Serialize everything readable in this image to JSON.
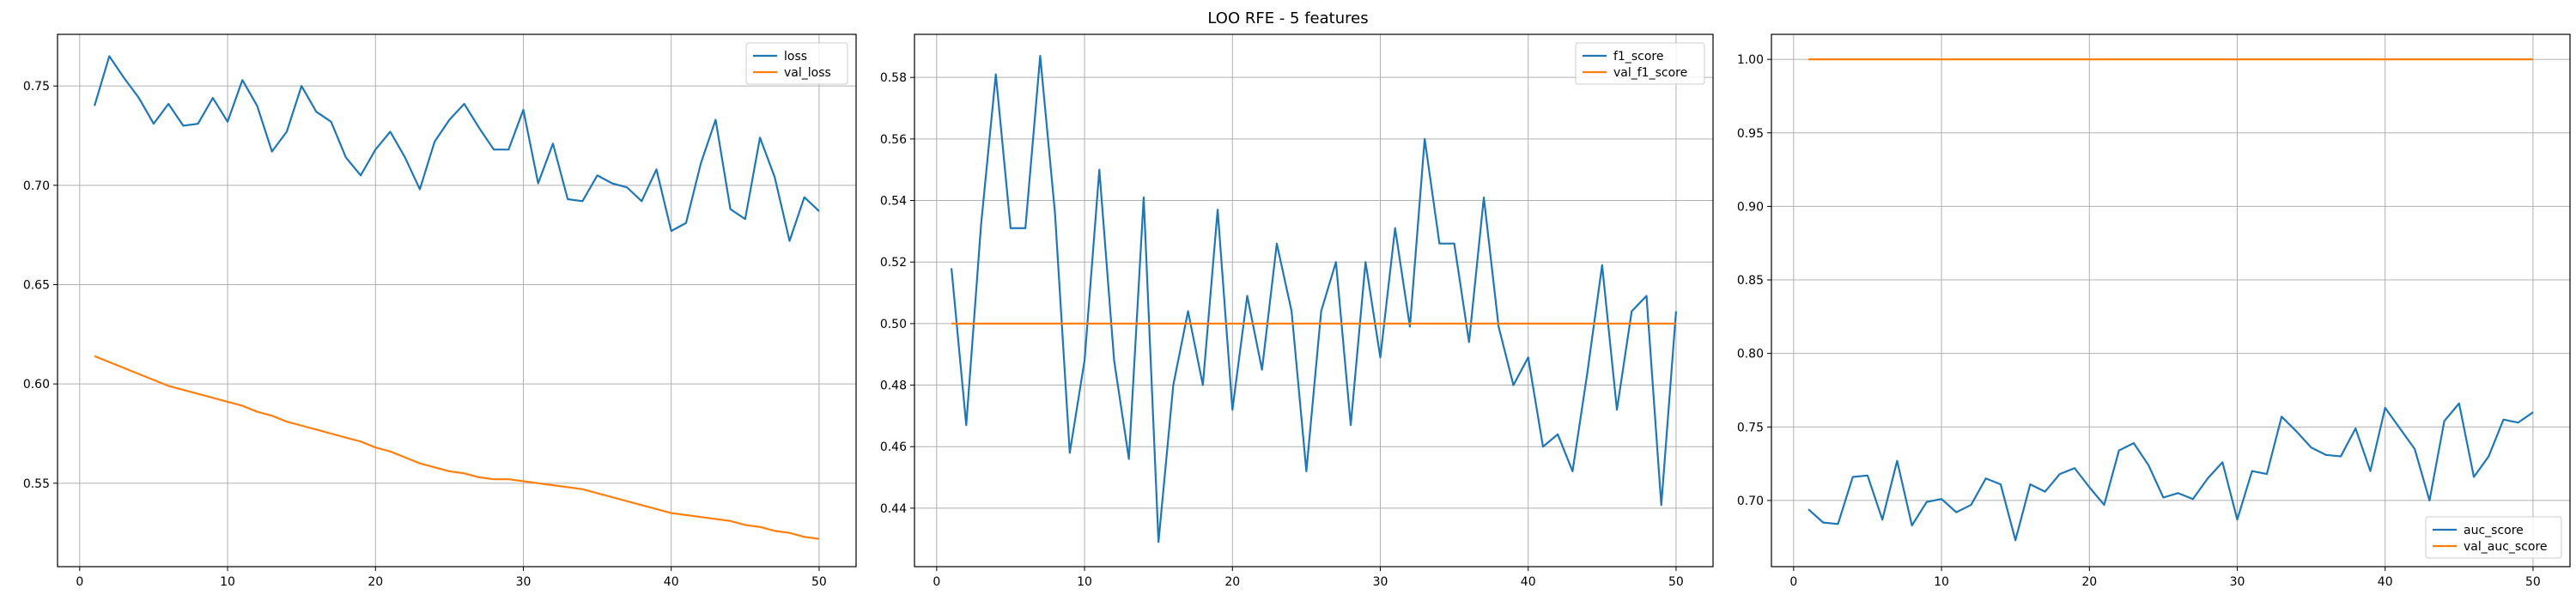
{
  "figure": {
    "title": "LOO RFE - 5 features"
  },
  "colors": {
    "blue": "#1f77b4",
    "orange": "#ff7f0e",
    "grid": "#b0b0b0"
  },
  "chart_data": [
    {
      "type": "line",
      "title": "",
      "xlabel": "",
      "ylabel": "",
      "grid": true,
      "legend": "upper right",
      "xlim": [
        -1.5,
        52.5
      ],
      "ylim": [
        0.508,
        0.776
      ],
      "xticks": [
        0,
        10,
        20,
        30,
        40,
        50
      ],
      "yticks": [
        0.55,
        0.6,
        0.65,
        0.7,
        0.75
      ],
      "ytick_labels": [
        "0.55",
        "0.60",
        "0.65",
        "0.70",
        "0.75"
      ],
      "x": [
        1,
        2,
        3,
        4,
        5,
        6,
        7,
        8,
        9,
        10,
        11,
        12,
        13,
        14,
        15,
        16,
        17,
        18,
        19,
        20,
        21,
        22,
        23,
        24,
        25,
        26,
        27,
        28,
        29,
        30,
        31,
        32,
        33,
        34,
        35,
        36,
        37,
        38,
        39,
        40,
        41,
        42,
        43,
        44,
        45,
        46,
        47,
        48,
        49,
        50
      ],
      "series": [
        {
          "name": "loss",
          "color": "#1f77b4",
          "values": [
            0.74,
            0.765,
            0.754,
            0.744,
            0.731,
            0.741,
            0.73,
            0.731,
            0.744,
            0.732,
            0.753,
            0.74,
            0.717,
            0.727,
            0.75,
            0.737,
            0.732,
            0.714,
            0.705,
            0.718,
            0.727,
            0.714,
            0.698,
            0.722,
            0.733,
            0.741,
            0.729,
            0.718,
            0.718,
            0.738,
            0.701,
            0.721,
            0.693,
            0.692,
            0.705,
            0.701,
            0.699,
            0.692,
            0.708,
            0.677,
            0.681,
            0.711,
            0.733,
            0.688,
            0.683,
            0.724,
            0.704,
            0.672,
            0.694,
            0.687
          ]
        },
        {
          "name": "val_loss",
          "color": "#ff7f0e",
          "values": [
            0.614,
            0.611,
            0.608,
            0.605,
            0.602,
            0.599,
            0.597,
            0.595,
            0.593,
            0.591,
            0.589,
            0.586,
            0.584,
            0.581,
            0.579,
            0.577,
            0.575,
            0.573,
            0.571,
            0.568,
            0.566,
            0.563,
            0.56,
            0.558,
            0.556,
            0.555,
            0.553,
            0.552,
            0.552,
            0.551,
            0.55,
            0.549,
            0.548,
            0.547,
            0.545,
            0.543,
            0.541,
            0.539,
            0.537,
            0.535,
            0.534,
            0.533,
            0.532,
            0.531,
            0.529,
            0.528,
            0.526,
            0.525,
            0.523,
            0.522
          ]
        }
      ]
    },
    {
      "type": "line",
      "title": "",
      "xlabel": "",
      "ylabel": "",
      "grid": true,
      "legend": "upper right",
      "xlim": [
        -1.5,
        52.5
      ],
      "ylim": [
        0.421,
        0.594
      ],
      "xticks": [
        0,
        10,
        20,
        30,
        40,
        50
      ],
      "yticks": [
        0.44,
        0.46,
        0.48,
        0.5,
        0.52,
        0.54,
        0.56,
        0.58
      ],
      "ytick_labels": [
        "0.44",
        "0.46",
        "0.48",
        "0.50",
        "0.52",
        "0.54",
        "0.56",
        "0.58"
      ],
      "x": [
        1,
        2,
        3,
        4,
        5,
        6,
        7,
        8,
        9,
        10,
        11,
        12,
        13,
        14,
        15,
        16,
        17,
        18,
        19,
        20,
        21,
        22,
        23,
        24,
        25,
        26,
        27,
        28,
        29,
        30,
        31,
        32,
        33,
        34,
        35,
        36,
        37,
        38,
        39,
        40,
        41,
        42,
        43,
        44,
        45,
        46,
        47,
        48,
        49,
        50
      ],
      "series": [
        {
          "name": "f1_score",
          "color": "#1f77b4",
          "values": [
            0.518,
            0.467,
            0.532,
            0.581,
            0.531,
            0.531,
            0.587,
            0.536,
            0.458,
            0.488,
            0.55,
            0.488,
            0.456,
            0.541,
            0.429,
            0.48,
            0.504,
            0.48,
            0.537,
            0.472,
            0.509,
            0.485,
            0.526,
            0.504,
            0.452,
            0.504,
            0.52,
            0.467,
            0.52,
            0.489,
            0.531,
            0.499,
            0.56,
            0.526,
            0.526,
            0.494,
            0.541,
            0.499,
            0.48,
            0.489,
            0.46,
            0.464,
            0.452,
            0.484,
            0.519,
            0.472,
            0.504,
            0.509,
            0.441,
            0.504
          ]
        },
        {
          "name": "val_f1_score",
          "color": "#ff7f0e",
          "values": [
            0.5,
            0.5,
            0.5,
            0.5,
            0.5,
            0.5,
            0.5,
            0.5,
            0.5,
            0.5,
            0.5,
            0.5,
            0.5,
            0.5,
            0.5,
            0.5,
            0.5,
            0.5,
            0.5,
            0.5,
            0.5,
            0.5,
            0.5,
            0.5,
            0.5,
            0.5,
            0.5,
            0.5,
            0.5,
            0.5,
            0.5,
            0.5,
            0.5,
            0.5,
            0.5,
            0.5,
            0.5,
            0.5,
            0.5,
            0.5,
            0.5,
            0.5,
            0.5,
            0.5,
            0.5,
            0.5,
            0.5,
            0.5,
            0.5,
            0.5
          ]
        }
      ]
    },
    {
      "type": "line",
      "title": "",
      "xlabel": "",
      "ylabel": "",
      "grid": true,
      "legend": "lower right",
      "xlim": [
        -1.5,
        52.5
      ],
      "ylim": [
        0.655,
        1.017
      ],
      "xticks": [
        0,
        10,
        20,
        30,
        40,
        50
      ],
      "yticks": [
        0.7,
        0.75,
        0.8,
        0.85,
        0.9,
        0.95,
        1.0
      ],
      "ytick_labels": [
        "0.70",
        "0.75",
        "0.80",
        "0.85",
        "0.90",
        "0.95",
        "1.00"
      ],
      "x": [
        1,
        2,
        3,
        4,
        5,
        6,
        7,
        8,
        9,
        10,
        11,
        12,
        13,
        14,
        15,
        16,
        17,
        18,
        19,
        20,
        21,
        22,
        23,
        24,
        25,
        26,
        27,
        28,
        29,
        30,
        31,
        32,
        33,
        34,
        35,
        36,
        37,
        38,
        39,
        40,
        41,
        42,
        43,
        44,
        45,
        46,
        47,
        48,
        49,
        50
      ],
      "series": [
        {
          "name": "auc_score",
          "color": "#1f77b4",
          "values": [
            0.694,
            0.685,
            0.684,
            0.716,
            0.717,
            0.687,
            0.727,
            0.683,
            0.699,
            0.701,
            0.692,
            0.697,
            0.715,
            0.711,
            0.673,
            0.711,
            0.706,
            0.718,
            0.722,
            0.709,
            0.697,
            0.734,
            0.739,
            0.724,
            0.702,
            0.705,
            0.701,
            0.715,
            0.726,
            0.687,
            0.72,
            0.718,
            0.757,
            0.747,
            0.736,
            0.731,
            0.73,
            0.749,
            0.72,
            0.763,
            0.749,
            0.735,
            0.7,
            0.754,
            0.766,
            0.716,
            0.73,
            0.755,
            0.753,
            0.76
          ]
        },
        {
          "name": "val_auc_score",
          "color": "#ff7f0e",
          "values": [
            1.0,
            1.0,
            1.0,
            1.0,
            1.0,
            1.0,
            1.0,
            1.0,
            1.0,
            1.0,
            1.0,
            1.0,
            1.0,
            1.0,
            1.0,
            1.0,
            1.0,
            1.0,
            1.0,
            1.0,
            1.0,
            1.0,
            1.0,
            1.0,
            1.0,
            1.0,
            1.0,
            1.0,
            1.0,
            1.0,
            1.0,
            1.0,
            1.0,
            1.0,
            1.0,
            1.0,
            1.0,
            1.0,
            1.0,
            1.0,
            1.0,
            1.0,
            1.0,
            1.0,
            1.0,
            1.0,
            1.0,
            1.0,
            1.0,
            1.0
          ]
        }
      ]
    }
  ]
}
